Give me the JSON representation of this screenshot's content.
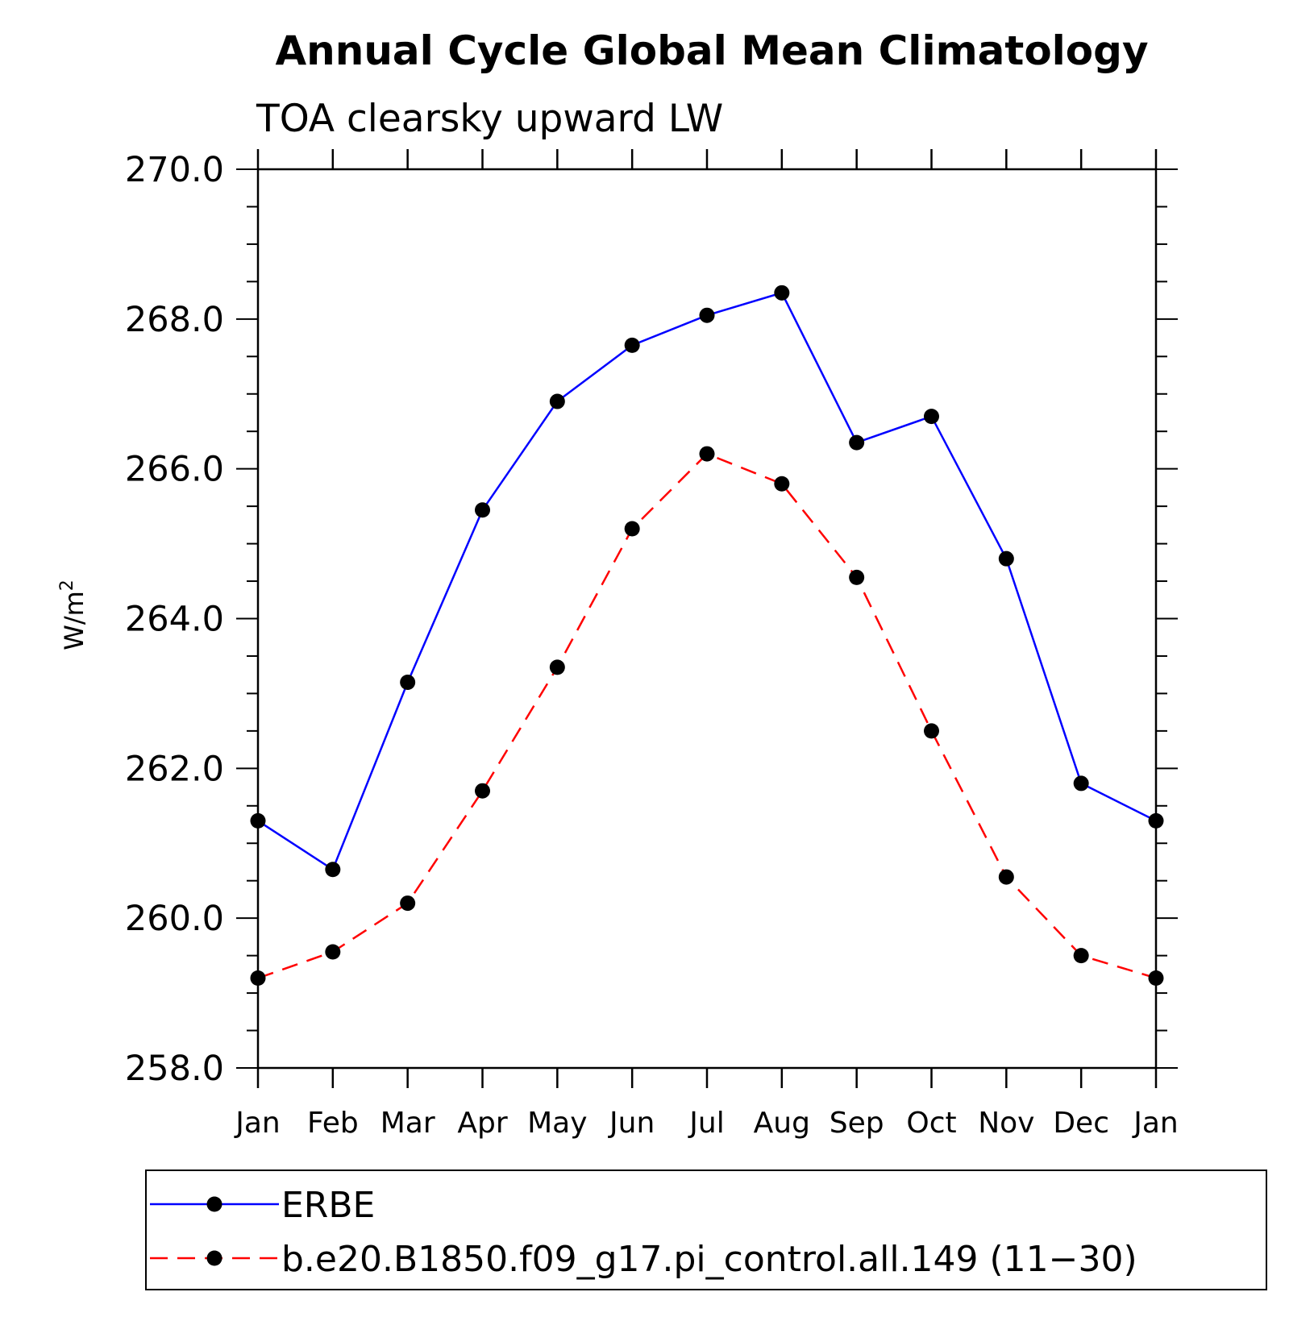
{
  "chart_data": {
    "type": "line",
    "title": "Annual Cycle Global Mean Climatology",
    "subtitle": "TOA clearsky upward LW",
    "ylabel": "W/m",
    "ylabel_superscript": "2",
    "xlabel": "",
    "categories": [
      "Jan",
      "Feb",
      "Mar",
      "Apr",
      "May",
      "Jun",
      "Jul",
      "Aug",
      "Sep",
      "Oct",
      "Nov",
      "Dec",
      "Jan"
    ],
    "ylim": [
      258.0,
      270.0
    ],
    "yticks": [
      "258.0",
      "260.0",
      "262.0",
      "264.0",
      "266.0",
      "268.0",
      "270.0"
    ],
    "grid": false,
    "legend_position": "bottom",
    "series": [
      {
        "name": "ERBE",
        "color": "#0000ff",
        "line_style": "solid",
        "values": [
          261.3,
          260.65,
          263.15,
          265.45,
          266.9,
          267.65,
          268.05,
          268.35,
          266.35,
          266.7,
          264.8,
          261.8,
          261.3
        ]
      },
      {
        "name": "b.e20.B1850.f09_g17.pi_control.all.149 (11−30)",
        "color": "#ff0000",
        "line_style": "dashed",
        "values": [
          259.2,
          259.55,
          260.2,
          261.7,
          263.35,
          265.2,
          266.2,
          265.8,
          264.55,
          262.5,
          260.55,
          259.5,
          259.2
        ]
      }
    ]
  }
}
